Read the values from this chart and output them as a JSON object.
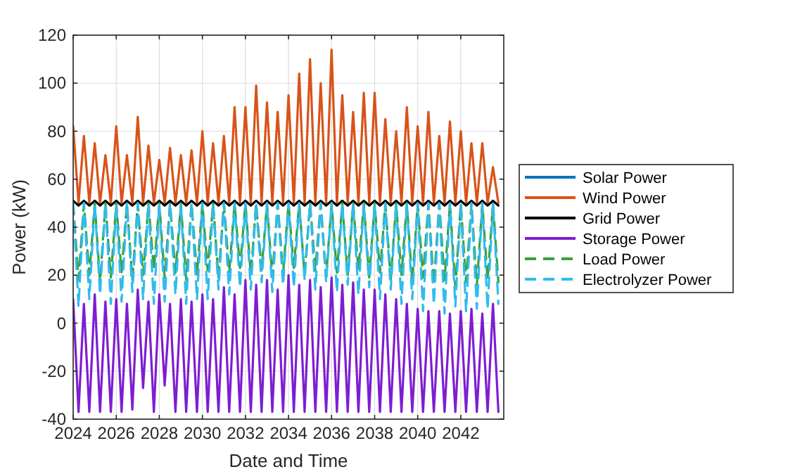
{
  "chart_data": {
    "type": "line",
    "xlabel": "Date and Time",
    "ylabel": "Power (kW)",
    "x": [
      "2024-01",
      "2024-04",
      "2024-07",
      "2024-10",
      "2025-01",
      "2025-04",
      "2025-07",
      "2025-10",
      "2026-01",
      "2026-04",
      "2026-07",
      "2026-10",
      "2027-01",
      "2027-04",
      "2027-07",
      "2027-10",
      "2028-01",
      "2028-04",
      "2028-07",
      "2028-10",
      "2029-01",
      "2029-04",
      "2029-07",
      "2029-10",
      "2030-01",
      "2030-04",
      "2030-07",
      "2030-10",
      "2031-01",
      "2031-04",
      "2031-07",
      "2031-10",
      "2032-01",
      "2032-04",
      "2032-07",
      "2032-10",
      "2033-01",
      "2033-04",
      "2033-07",
      "2033-10",
      "2034-01",
      "2034-04",
      "2034-07",
      "2034-10",
      "2035-01",
      "2035-04",
      "2035-07",
      "2035-10",
      "2036-01",
      "2036-04",
      "2036-07",
      "2036-10",
      "2037-01",
      "2037-04",
      "2037-07",
      "2037-10",
      "2038-01",
      "2038-04",
      "2038-07",
      "2038-10",
      "2039-01",
      "2039-04",
      "2039-07",
      "2039-10",
      "2040-01",
      "2040-04",
      "2040-07",
      "2040-10",
      "2041-01",
      "2041-04",
      "2041-07",
      "2041-10",
      "2042-01",
      "2042-04",
      "2042-07",
      "2042-10",
      "2043-01",
      "2043-04",
      "2043-07",
      "2043-10"
    ],
    "xlim": [
      "2024-01-01",
      "2043-12-31"
    ],
    "xticks": [
      "2024",
      "2026",
      "2028",
      "2030",
      "2032",
      "2034",
      "2036",
      "2038",
      "2040",
      "2042"
    ],
    "ylim": [
      -40,
      120
    ],
    "yticks": [
      -40,
      -20,
      0,
      20,
      40,
      60,
      80,
      100,
      120
    ],
    "grid": true,
    "legend": "right",
    "series": [
      {
        "name": "Solar Power",
        "color": "#0072bd",
        "line_style": "solid",
        "values": [
          null,
          null,
          null,
          null,
          null,
          null,
          null,
          null,
          null,
          null,
          null,
          null,
          null,
          null,
          null,
          null,
          null,
          null,
          null,
          null,
          null,
          null,
          null,
          null,
          null,
          null,
          null,
          null,
          null,
          null,
          null,
          null,
          null,
          null,
          null,
          null,
          null,
          null,
          null,
          null,
          null,
          null,
          null,
          null,
          null,
          null,
          null,
          null,
          null,
          null,
          null,
          null,
          null,
          null,
          null,
          null,
          null,
          null,
          null,
          null,
          null,
          null,
          null,
          null,
          null,
          null,
          null,
          null,
          null,
          null,
          null,
          null,
          null,
          null,
          null,
          null,
          null,
          null,
          null,
          null
        ]
      },
      {
        "name": "Wind Power",
        "color": "#d95319",
        "line_style": "solid",
        "values": [
          82,
          50,
          78,
          50,
          75,
          50,
          70,
          50,
          82,
          50,
          70,
          50,
          86,
          50,
          74,
          50,
          68,
          50,
          73,
          50,
          70,
          50,
          72,
          50,
          80,
          50,
          75,
          50,
          78,
          50,
          90,
          50,
          90,
          50,
          99,
          50,
          92,
          50,
          88,
          50,
          95,
          50,
          104,
          50,
          110,
          50,
          100,
          50,
          114,
          50,
          95,
          50,
          88,
          50,
          96,
          50,
          96,
          50,
          85,
          50,
          80,
          50,
          90,
          50,
          82,
          50,
          88,
          50,
          78,
          50,
          84,
          50,
          80,
          50,
          75,
          50,
          75,
          50,
          65,
          50
        ]
      },
      {
        "name": "Grid Power",
        "color": "#000000",
        "line_style": "solid",
        "values": [
          51,
          49,
          51,
          49,
          51,
          49,
          51,
          49,
          51,
          49,
          51,
          49,
          51,
          49,
          51,
          49,
          51,
          49,
          51,
          49,
          51,
          49,
          51,
          49,
          51,
          49,
          51,
          49,
          51,
          49,
          51,
          49,
          51,
          49,
          51,
          49,
          51,
          49,
          51,
          49,
          51,
          49,
          51,
          49,
          51,
          49,
          51,
          49,
          51,
          49,
          51,
          49,
          51,
          49,
          51,
          49,
          51,
          49,
          51,
          49,
          51,
          49,
          51,
          49,
          51,
          49,
          51,
          49,
          51,
          49,
          51,
          49,
          51,
          49,
          51,
          49,
          51,
          49,
          51,
          49
        ]
      },
      {
        "name": "Storage Power",
        "color": "#7e1dd2",
        "line_style": "solid",
        "values": [
          10,
          -37,
          8,
          -37,
          12,
          -37,
          9,
          -37,
          10,
          -37,
          8,
          -36,
          14,
          -27,
          9,
          -37,
          12,
          -26,
          8,
          -37,
          10,
          -37,
          9,
          -37,
          12,
          -37,
          10,
          -37,
          15,
          -37,
          12,
          -37,
          18,
          -37,
          16,
          -37,
          18,
          -37,
          14,
          -37,
          20,
          -37,
          16,
          -37,
          18,
          -37,
          15,
          -37,
          19,
          -37,
          16,
          -37,
          17,
          -37,
          14,
          -37,
          14,
          -37,
          12,
          -37,
          10,
          -37,
          8,
          -37,
          6,
          -37,
          5,
          -37,
          5,
          -37,
          4,
          -37,
          5,
          -37,
          6,
          -37,
          4,
          -37,
          8,
          -37
        ]
      },
      {
        "name": "Load Power",
        "color": "#3aa13a",
        "line_style": "dashed",
        "values": [
          50,
          18,
          50,
          20,
          50,
          17,
          50,
          19,
          50,
          21,
          50,
          18,
          50,
          20,
          50,
          22,
          50,
          19,
          50,
          21,
          50,
          18,
          50,
          20,
          50,
          22,
          50,
          19,
          50,
          21,
          50,
          23,
          50,
          20,
          50,
          22,
          50,
          19,
          50,
          21,
          50,
          23,
          50,
          20,
          50,
          22,
          50,
          19,
          50,
          21,
          50,
          20,
          50,
          22,
          50,
          19,
          50,
          21,
          50,
          18,
          50,
          20,
          50,
          17,
          50,
          19,
          50,
          16,
          50,
          18,
          50,
          15,
          50,
          17,
          50,
          16,
          50,
          18,
          50,
          17
        ]
      },
      {
        "name": "Electrolyzer Power",
        "color": "#30bbee",
        "line_style": "dashed",
        "values": [
          50,
          7,
          50,
          10,
          50,
          12,
          50,
          8,
          50,
          9,
          50,
          13,
          50,
          10,
          50,
          8,
          50,
          9,
          50,
          12,
          50,
          8,
          50,
          10,
          50,
          10,
          50,
          14,
          50,
          12,
          50,
          15,
          50,
          14,
          50,
          17,
          50,
          13,
          50,
          16,
          50,
          15,
          50,
          18,
          50,
          14,
          50,
          17,
          50,
          13,
          50,
          16,
          50,
          12,
          50,
          15,
          50,
          10,
          50,
          14,
          50,
          8,
          50,
          10,
          50,
          5,
          50,
          8,
          50,
          4,
          50,
          7,
          50,
          5,
          50,
          6,
          50,
          6,
          50,
          8
        ]
      }
    ]
  }
}
